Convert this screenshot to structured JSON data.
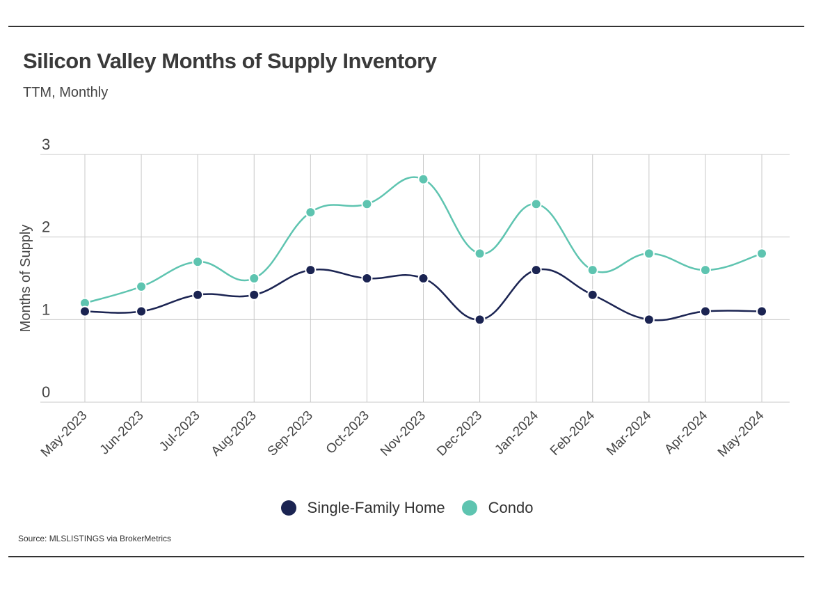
{
  "title": "Silicon Valley Months of Supply Inventory",
  "subtitle": "TTM, Monthly",
  "source": "Source:  MLSLISTINGS via BrokerMetrics",
  "colors": {
    "sfh": "#1b2452",
    "condo": "#5ec4b0",
    "grid": "#c8c8c8",
    "axis_text": "#444444"
  },
  "legend": [
    {
      "key": "sfh",
      "label": "Single-Family Home"
    },
    {
      "key": "condo",
      "label": "Condo"
    }
  ],
  "chart_data": {
    "type": "line",
    "title": "Silicon Valley Months of Supply Inventory",
    "subtitle": "TTM, Monthly",
    "xlabel": "",
    "ylabel": "Months of Supply",
    "ylim": [
      0,
      3
    ],
    "yticks": [
      0,
      1,
      2,
      3
    ],
    "grid": true,
    "smooth": true,
    "legend_position": "bottom",
    "categories": [
      "May-2023",
      "Jun-2023",
      "Jul-2023",
      "Aug-2023",
      "Sep-2023",
      "Oct-2023",
      "Nov-2023",
      "Dec-2023",
      "Jan-2024",
      "Feb-2024",
      "Mar-2024",
      "Apr-2024",
      "May-2024"
    ],
    "series": [
      {
        "name": "Single-Family Home",
        "key": "sfh",
        "values": [
          1.1,
          1.1,
          1.3,
          1.3,
          1.6,
          1.5,
          1.5,
          1.0,
          1.6,
          1.3,
          1.0,
          1.1,
          1.1
        ]
      },
      {
        "name": "Condo",
        "key": "condo",
        "values": [
          1.2,
          1.4,
          1.7,
          1.5,
          2.3,
          2.4,
          2.7,
          1.8,
          2.4,
          1.6,
          1.8,
          1.6,
          1.8
        ]
      }
    ]
  }
}
